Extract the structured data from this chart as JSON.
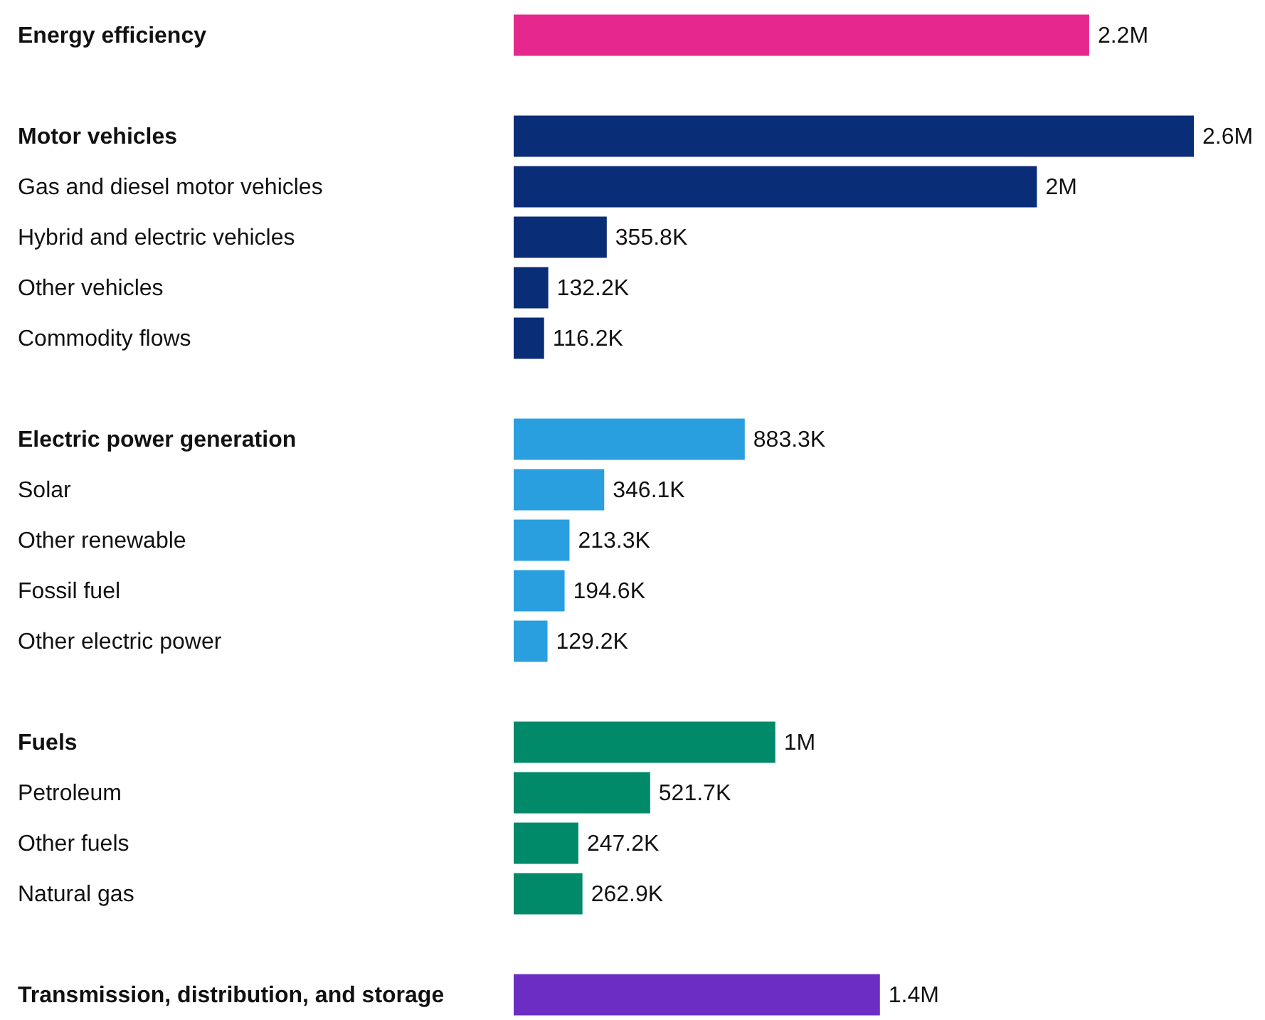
{
  "chart_data": {
    "type": "bar",
    "orientation": "horizontal",
    "categories": [
      "Energy efficiency",
      null,
      "Motor vehicles",
      "Gas and diesel motor vehicles",
      "Hybrid and electric vehicles",
      "Other vehicles",
      "Commodity flows",
      null,
      "Electric power generation",
      "Solar",
      "Other renewable",
      "Fossil fuel",
      "Other electric power",
      null,
      "Fuels",
      "Petroleum",
      "Other fuels",
      "Natural gas",
      null,
      "Transmission, distribution, and storage"
    ],
    "values": [
      2200000,
      null,
      2600000,
      2000000,
      355800,
      132200,
      116200,
      null,
      883300,
      346100,
      213300,
      194600,
      129200,
      null,
      1000000,
      521700,
      247200,
      262900,
      null,
      1400000
    ],
    "value_labels": [
      "2.2M",
      null,
      "2.6M",
      "2M",
      "355.8K",
      "132.2K",
      "116.2K",
      null,
      "883.3K",
      "346.1K",
      "213.3K",
      "194.6K",
      "129.2K",
      null,
      "1M",
      "521.7K",
      "247.2K",
      "262.9K",
      null,
      "1.4M"
    ],
    "colors": [
      "#e6288e",
      null,
      "#0a2d78",
      "#0a2d78",
      "#0a2d78",
      "#0a2d78",
      "#0a2d78",
      null,
      "#299fe0",
      "#299fe0",
      "#299fe0",
      "#299fe0",
      "#299fe0",
      null,
      "#008a6a",
      "#008a6a",
      "#008a6a",
      "#008a6a",
      null,
      "#6b2dc3"
    ]
  }
}
